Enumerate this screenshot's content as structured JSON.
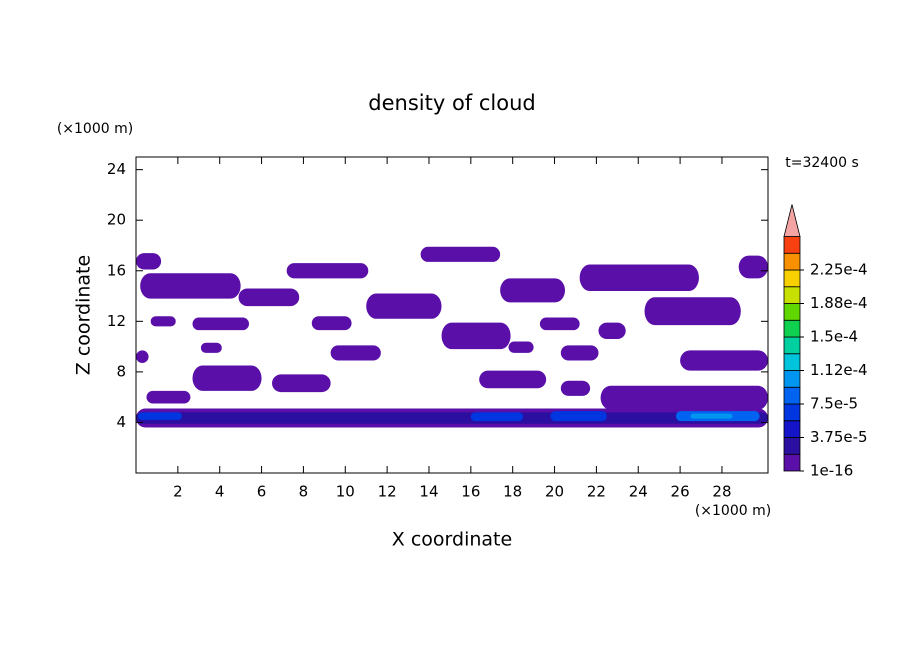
{
  "chart_data": {
    "type": "contour",
    "title": "density of cloud",
    "x_label": "X coordinate",
    "y_label": "Z coordinate",
    "x_unit": "(×1000 m)",
    "y_unit": "(×1000 m)",
    "annotation": "t=32400 s",
    "xlim": [
      0,
      30.2
    ],
    "ylim": [
      0,
      25
    ],
    "xticks": [
      2,
      4,
      6,
      8,
      10,
      12,
      14,
      16,
      18,
      20,
      22,
      24,
      26,
      28
    ],
    "yticks": [
      4,
      8,
      12,
      16,
      20,
      24
    ],
    "colorbar": {
      "levels": [
        1e-16,
        1.875e-05,
        3.75e-05,
        5.625e-05,
        7.5e-05,
        9.375e-05,
        0.0001125,
        0.00013125,
        0.00015,
        0.00016875,
        0.0001875,
        0.00020625,
        0.000225,
        0.00024375,
        0.0002625
      ],
      "colors": [
        "#5a0fa8",
        "#2a0fa0",
        "#1414c8",
        "#0036e0",
        "#0064f0",
        "#0096f0",
        "#00c4dc",
        "#00d0a0",
        "#10d050",
        "#60d800",
        "#c8e000",
        "#f8d000",
        "#f89000",
        "#f84010"
      ],
      "extend_color": "#f4a4a4",
      "ticks": [
        {
          "value": 1e-16,
          "label": "1e-16"
        },
        {
          "value": 3.75e-05,
          "label": "3.75e-5"
        },
        {
          "value": 7.5e-05,
          "label": "7.5e-5"
        },
        {
          "value": 0.0001125,
          "label": "1.12e-4"
        },
        {
          "value": 0.00015,
          "label": "1.5e-4"
        },
        {
          "value": 0.0001875,
          "label": "1.88e-4"
        },
        {
          "value": 0.000225,
          "label": "2.25e-4"
        }
      ]
    },
    "regions": [
      {
        "x": [
          0,
          30.2
        ],
        "z": [
          3.6,
          5.1
        ],
        "level": 0
      },
      {
        "x": [
          22.2,
          30.2
        ],
        "z": [
          5.0,
          6.9
        ],
        "level": 0
      },
      {
        "x": [
          0,
          30.2
        ],
        "z": [
          3.9,
          4.8
        ],
        "level": 1
      },
      {
        "x": [
          0.1,
          2.2
        ],
        "z": [
          4.2,
          4.8
        ],
        "level": 3
      },
      {
        "x": [
          16.0,
          18.5
        ],
        "z": [
          4.1,
          4.8
        ],
        "level": 3
      },
      {
        "x": [
          19.8,
          22.5
        ],
        "z": [
          4.1,
          4.9
        ],
        "level": 3
      },
      {
        "x": [
          25.8,
          29.8
        ],
        "z": [
          4.1,
          4.9
        ],
        "level": 4
      },
      {
        "x": [
          26.5,
          28.5
        ],
        "z": [
          4.3,
          4.7
        ],
        "level": 5
      },
      {
        "x": [
          0.5,
          2.6
        ],
        "z": [
          5.5,
          6.5
        ],
        "level": 0
      },
      {
        "x": [
          2.7,
          6.0
        ],
        "z": [
          6.5,
          8.5
        ],
        "level": 0
      },
      {
        "x": [
          6.5,
          9.3
        ],
        "z": [
          6.4,
          7.8
        ],
        "level": 0
      },
      {
        "x": [
          16.4,
          19.6
        ],
        "z": [
          6.7,
          8.1
        ],
        "level": 0
      },
      {
        "x": [
          20.3,
          21.7
        ],
        "z": [
          6.1,
          7.3
        ],
        "level": 0
      },
      {
        "x": [
          26.0,
          30.2
        ],
        "z": [
          8.1,
          9.7
        ],
        "level": 0
      },
      {
        "x": [
          0,
          0.6
        ],
        "z": [
          8.7,
          9.7
        ],
        "level": 0
      },
      {
        "x": [
          3.1,
          4.1
        ],
        "z": [
          9.5,
          10.3
        ],
        "level": 0
      },
      {
        "x": [
          9.3,
          11.7
        ],
        "z": [
          8.9,
          10.1
        ],
        "level": 0
      },
      {
        "x": [
          17.8,
          19.0
        ],
        "z": [
          9.5,
          10.4
        ],
        "level": 0
      },
      {
        "x": [
          20.3,
          22.1
        ],
        "z": [
          8.9,
          10.1
        ],
        "level": 0
      },
      {
        "x": [
          14.6,
          17.9
        ],
        "z": [
          9.8,
          11.9
        ],
        "level": 0
      },
      {
        "x": [
          22.1,
          23.4
        ],
        "z": [
          10.6,
          11.9
        ],
        "level": 0
      },
      {
        "x": [
          0.7,
          1.9
        ],
        "z": [
          11.6,
          12.4
        ],
        "level": 0
      },
      {
        "x": [
          2.7,
          5.4
        ],
        "z": [
          11.3,
          12.3
        ],
        "level": 0
      },
      {
        "x": [
          8.4,
          10.3
        ],
        "z": [
          11.3,
          12.4
        ],
        "level": 0
      },
      {
        "x": [
          19.3,
          21.2
        ],
        "z": [
          11.3,
          12.3
        ],
        "level": 0
      },
      {
        "x": [
          11.0,
          14.6
        ],
        "z": [
          12.2,
          14.2
        ],
        "level": 0
      },
      {
        "x": [
          24.3,
          28.9
        ],
        "z": [
          11.7,
          13.9
        ],
        "level": 0
      },
      {
        "x": [
          4.9,
          7.8
        ],
        "z": [
          13.2,
          14.6
        ],
        "level": 0
      },
      {
        "x": [
          17.4,
          20.5
        ],
        "z": [
          13.5,
          15.4
        ],
        "level": 0
      },
      {
        "x": [
          0.2,
          5.0
        ],
        "z": [
          13.8,
          15.8
        ],
        "level": 0
      },
      {
        "x": [
          21.2,
          26.9
        ],
        "z": [
          14.4,
          16.5
        ],
        "level": 0
      },
      {
        "x": [
          7.2,
          11.1
        ],
        "z": [
          15.4,
          16.6
        ],
        "level": 0
      },
      {
        "x": [
          28.8,
          30.2
        ],
        "z": [
          15.4,
          17.2
        ],
        "level": 0
      },
      {
        "x": [
          0,
          1.2
        ],
        "z": [
          16.1,
          17.4
        ],
        "level": 0
      },
      {
        "x": [
          13.6,
          17.4
        ],
        "z": [
          16.7,
          17.9
        ],
        "level": 0
      }
    ]
  }
}
